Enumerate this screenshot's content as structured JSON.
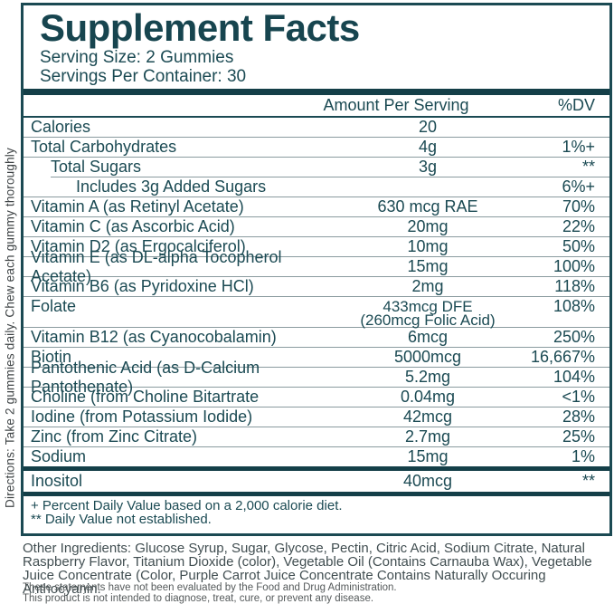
{
  "panel": {
    "title": "Supplement Facts",
    "serving_size": "Serving Size: 2 Gummies",
    "servings_per_container": "Servings Per Container: 30",
    "columns": {
      "amount": "Amount Per Serving",
      "dv": "%DV"
    },
    "rows": [
      {
        "name": "Calories",
        "amount": "20",
        "dv": ""
      },
      {
        "name": "Total Carbohydrates",
        "amount": "4g",
        "dv": "1%+"
      },
      {
        "name": "Total Sugars",
        "amount": "3g",
        "dv": "**",
        "indent": 1
      },
      {
        "name": "Includes 3g Added Sugars",
        "amount": "",
        "dv": "6%+",
        "indent": 2,
        "indented_divider": true
      },
      {
        "name": "Vitamin A (as Retinyl Acetate)",
        "amount": "630 mcg RAE",
        "dv": "70%"
      },
      {
        "name": "Vitamin C (as Ascorbic Acid)",
        "amount": "20mg",
        "dv": "22%"
      },
      {
        "name": "Vitamin D2 (as Ergocalciferol)",
        "amount": "10mg",
        "dv": "50%"
      },
      {
        "name": "Vitamin E (as DL-alpha Tocopherol Acetate)",
        "amount": "15mg",
        "dv": "100%"
      },
      {
        "name": "Vitamin B6 (as Pyridoxine HCl)",
        "amount": "2mg",
        "dv": "118%"
      },
      {
        "name": "Folate",
        "amount": "433mcg DFE",
        "amount2": "(260mcg Folic Acid)",
        "dv": "108%",
        "two_line": true
      },
      {
        "name": "Vitamin B12 (as Cyanocobalamin)",
        "amount": "6mcg",
        "dv": "250%"
      },
      {
        "name": "Biotin",
        "amount": "5000mcg",
        "dv": "16,667%"
      },
      {
        "name": "Pantothenic Acid (as D-Calcium Pantothenate)",
        "amount": "5.2mg",
        "dv": "104%"
      },
      {
        "name": "Choline (from Choline Bitartrate",
        "amount": "0.04mg",
        "dv": "<1%"
      },
      {
        "name": "Iodine (from Potassium Iodide)",
        "amount": "42mcg",
        "dv": "28%"
      },
      {
        "name": "Zinc (from Zinc Citrate)",
        "amount": "2.7mg",
        "dv": "25%"
      },
      {
        "name": "Sodium",
        "amount": "15mg",
        "dv": "1%"
      }
    ],
    "inositol_row": {
      "name": "Inositol",
      "amount": "40mcg",
      "dv": "**"
    },
    "footnotes": [
      "+ Percent Daily Value based on a 2,000 calorie diet.",
      "** Daily Value not established."
    ]
  },
  "directions": "Directions: Take 2 gummies daily. Chew each gummy thoroughly",
  "other_ingredients": "Other Ingredients: Glucose Syrup, Sugar, Glycose, Pectin, Citric Acid, Sodium Citrate, Natural Raspberry Flavor, Titanium Dioxide (color), Vegetable Oil (Contains Carnauba Wax), Vegetable Juice Concentrate (Color, Purple Carrot Juice Concentrate Contains Naturally Occuring Anthocyanin.",
  "disclaimer": [
    "These statements have not been evaluated by the Food and Drug Administration.",
    "This product is not intended to diagnose, treat, cure, or prevent any disease."
  ],
  "colors": {
    "accent_teal": "#1b4a53",
    "divider_gray": "#8a9b9f",
    "directions_gray": "#3f4446"
  }
}
